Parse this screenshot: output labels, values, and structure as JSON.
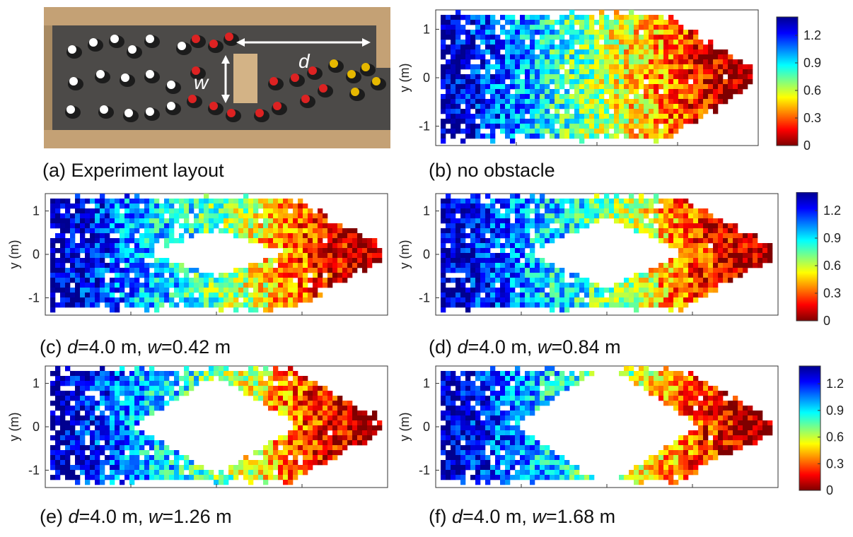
{
  "photo": {
    "label_d": "d",
    "label_w": "w"
  },
  "captions": {
    "a": {
      "prefix": "(a) Experiment layout",
      "d_sym": "",
      "d_val": "",
      "w_sym": "",
      "w_val": ""
    },
    "b": {
      "prefix": "(b) no obstacle",
      "d_sym": "",
      "d_val": "",
      "w_sym": "",
      "w_val": ""
    },
    "c": {
      "prefix": "(c) ",
      "d_sym": "d",
      "d_val": "=4.0 m, ",
      "w_sym": "w",
      "w_val": "=0.42 m"
    },
    "d": {
      "prefix": "(d) ",
      "d_sym": "d",
      "d_val": "=4.0 m, ",
      "w_sym": "w",
      "w_val": "=0.84 m"
    },
    "e": {
      "prefix": "(e) ",
      "d_sym": "d",
      "d_val": "=4.0 m, ",
      "w_sym": "w",
      "w_val": "=1.26 m"
    },
    "f": {
      "prefix": "(f) ",
      "d_sym": "d",
      "d_val": "=4.0 m, ",
      "w_sym": "w",
      "w_val": "=1.68 m"
    }
  },
  "colors": {
    "colormap": [
      "#7f0000",
      "#ff0000",
      "#ff8000",
      "#ffff00",
      "#80ff80",
      "#00ffff",
      "#0080ff",
      "#0000ff",
      "#00008f"
    ],
    "axis": "#333333",
    "photo_floor": "#4a4a4a",
    "photo_boxes": "#c8a67a"
  },
  "chart_data": [
    {
      "type": "heatmap",
      "panel": "b",
      "ylabel": "y (m)",
      "yticks": [
        "1",
        "0",
        "-1"
      ],
      "ylim": [
        -1.4,
        1.4
      ],
      "obstacle_width_m": 0,
      "colorbar_ticks": [
        "1.2",
        "0.9",
        "0.6",
        "0.3",
        "0"
      ],
      "clim": [
        0,
        1.4
      ]
    },
    {
      "type": "heatmap",
      "panel": "c",
      "ylabel": "y (m)",
      "yticks": [
        "1",
        "0",
        "-1"
      ],
      "ylim": [
        -1.4,
        1.4
      ],
      "obstacle_width_m": 0.42
    },
    {
      "type": "heatmap",
      "panel": "d",
      "ylabel": "y (m)",
      "yticks": [
        "1",
        "0",
        "-1"
      ],
      "ylim": [
        -1.4,
        1.4
      ],
      "obstacle_width_m": 0.84,
      "colorbar_ticks": [
        "1.2",
        "0.9",
        "0.6",
        "0.3",
        "0"
      ],
      "clim": [
        0,
        1.4
      ]
    },
    {
      "type": "heatmap",
      "panel": "e",
      "ylabel": "y (m)",
      "yticks": [
        "1",
        "0",
        "-1"
      ],
      "ylim": [
        -1.4,
        1.4
      ],
      "obstacle_width_m": 1.26
    },
    {
      "type": "heatmap",
      "panel": "f",
      "ylabel": "y (m)",
      "yticks": [
        "1",
        "0",
        "-1"
      ],
      "ylim": [
        -1.4,
        1.4
      ],
      "obstacle_width_m": 1.68,
      "colorbar_ticks": [
        "1.2",
        "0.9",
        "0.6",
        "0.3",
        "0"
      ],
      "clim": [
        0,
        1.4
      ]
    }
  ]
}
